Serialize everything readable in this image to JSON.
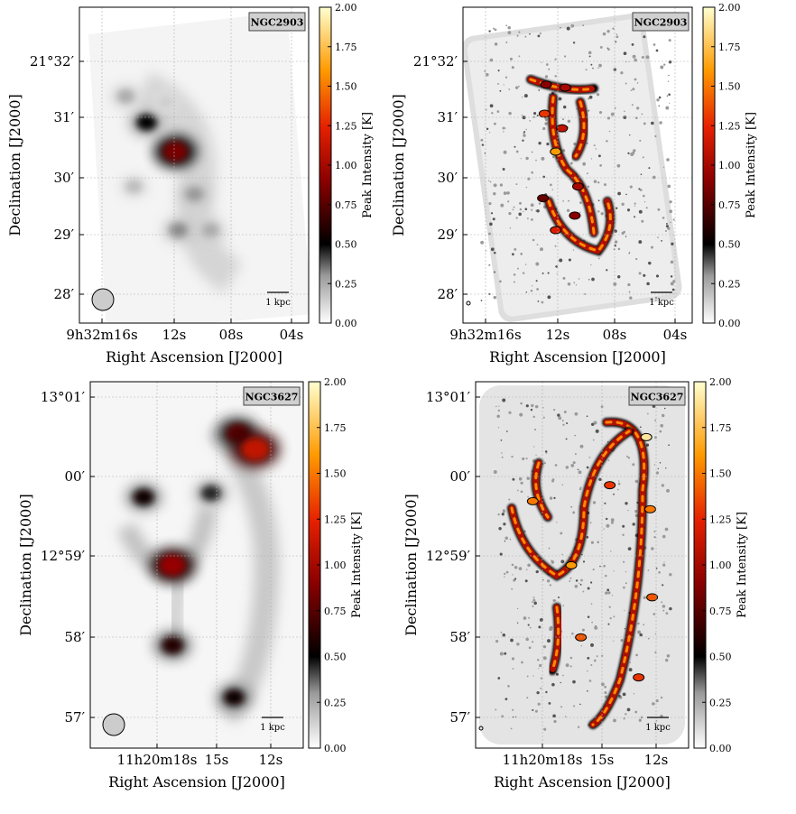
{
  "chart_data": [
    {
      "type": "heatmap",
      "title": "NGC2903",
      "xlabel": "Right Ascension [J2000]",
      "ylabel": "Declination [J2000]",
      "x_ticks": [
        "9h32m16s",
        "12s",
        "08s",
        "04s"
      ],
      "y_ticks": [
        "21°32′",
        "31′",
        "30′",
        "29′",
        "28′"
      ],
      "colorbar_label": "Peak Intensity [K]",
      "colorbar_ticks": [
        "2.00",
        "1.75",
        "1.50",
        "1.25",
        "1.00",
        "0.75",
        "0.50",
        "0.25",
        "0.00"
      ],
      "colorbar_range": [
        0,
        2
      ],
      "scalebar_label": "1 kpc",
      "beam": "large",
      "grid": true,
      "blobs": [
        {
          "ra": 13.2,
          "dec": 30.95,
          "peak": 0.5
        },
        {
          "ra": 11.4,
          "dec": 30.45,
          "peak": 0.85
        },
        {
          "ra": 14.5,
          "dec": 31.4,
          "peak": 0.25
        },
        {
          "ra": 10.2,
          "dec": 29.72,
          "peak": 0.3
        },
        {
          "ra": 11.2,
          "dec": 29.1,
          "peak": 0.32
        },
        {
          "ra": 9.2,
          "dec": 29.1,
          "peak": 0.25
        },
        {
          "ra": 14.0,
          "dec": 29.85,
          "peak": 0.2
        },
        {
          "ra": 12.0,
          "dec": 31.3,
          "peak": 0.15
        }
      ]
    },
    {
      "type": "heatmap",
      "title": "NGC2903",
      "xlabel": "Right Ascension [J2000]",
      "ylabel": "Declination [J2000]",
      "x_ticks": [
        "9h32m16s",
        "12s",
        "08s",
        "04s"
      ],
      "y_ticks": [
        "21°32′",
        "31′",
        "30′",
        "29′",
        "28′"
      ],
      "colorbar_label": "Peak Intensity [K]",
      "colorbar_ticks": [
        "2.00",
        "1.75",
        "1.50",
        "1.25",
        "1.00",
        "0.75",
        "0.50",
        "0.25",
        "0.00"
      ],
      "colorbar_range": [
        0,
        2
      ],
      "scalebar_label": "1 kpc",
      "beam": "small",
      "grid": true,
      "features": [
        {
          "ra": 12.2,
          "dec": 31.6,
          "peak": 0.9
        },
        {
          "ra": 11.0,
          "dec": 31.55,
          "peak": 1.0
        },
        {
          "ra": 12.3,
          "dec": 31.1,
          "peak": 1.3
        },
        {
          "ra": 11.2,
          "dec": 30.85,
          "peak": 1.1
        },
        {
          "ra": 11.6,
          "dec": 30.45,
          "peak": 1.6
        },
        {
          "ra": 10.2,
          "dec": 29.85,
          "peak": 1.0
        },
        {
          "ra": 10.4,
          "dec": 29.35,
          "peak": 0.9
        },
        {
          "ra": 11.6,
          "dec": 29.1,
          "peak": 1.2
        },
        {
          "ra": 12.4,
          "dec": 29.65,
          "peak": 0.8
        }
      ]
    },
    {
      "type": "heatmap",
      "title": "NGC3627",
      "xlabel": "Right Ascension [J2000]",
      "ylabel": "Declination [J2000]",
      "x_ticks": [
        "11h20m18s",
        "15s",
        "12s"
      ],
      "y_ticks": [
        "13°01′",
        "00′",
        "12°59′",
        "58′",
        "57′"
      ],
      "colorbar_label": "Peak Intensity [K]",
      "colorbar_ticks": [
        "2.00",
        "1.75",
        "1.50",
        "1.25",
        "1.00",
        "0.75",
        "0.50",
        "0.25",
        "0.00"
      ],
      "colorbar_range": [
        0,
        2
      ],
      "scalebar_label": "1 kpc",
      "beam": "large",
      "grid": true,
      "blobs": [
        {
          "ra": 13.8,
          "dec": 0.55,
          "peak": 0.75
        },
        {
          "ra": 12.9,
          "dec": 0.35,
          "peak": 1.1
        },
        {
          "ra": 18.7,
          "dec": -0.25,
          "peak": 0.55
        },
        {
          "ra": 15.2,
          "dec": -0.2,
          "peak": 0.45
        },
        {
          "ra": 17.2,
          "dec": -1.1,
          "peak": 0.95
        },
        {
          "ra": 17.2,
          "dec": -2.1,
          "peak": 0.6
        },
        {
          "ra": 14.0,
          "dec": -2.75,
          "peak": 0.55
        }
      ]
    },
    {
      "type": "heatmap",
      "title": "NGC3627",
      "xlabel": "Right Ascension [J2000]",
      "ylabel": "Declination [J2000]",
      "x_ticks": [
        "11h20m18s",
        "15s",
        "12s"
      ],
      "y_ticks": [
        "13°01′",
        "00′",
        "12°59′",
        "58′",
        "57′"
      ],
      "colorbar_label": "Peak Intensity [K]",
      "colorbar_ticks": [
        "2.00",
        "1.75",
        "1.50",
        "1.25",
        "1.00",
        "0.75",
        "0.50",
        "0.25",
        "0.00"
      ],
      "colorbar_range": [
        0,
        2
      ],
      "scalebar_label": "1 kpc",
      "beam": "small",
      "grid": true,
      "features": [
        {
          "ra": 12.6,
          "dec": 0.5,
          "peak": 1.9
        },
        {
          "ra": 12.4,
          "dec": -0.4,
          "peak": 1.5
        },
        {
          "ra": 12.3,
          "dec": -1.5,
          "peak": 1.4
        },
        {
          "ra": 13.0,
          "dec": -2.5,
          "peak": 1.3
        },
        {
          "ra": 18.5,
          "dec": -0.3,
          "peak": 1.5
        },
        {
          "ra": 16.5,
          "dec": -1.1,
          "peak": 1.6
        },
        {
          "ra": 14.5,
          "dec": -0.1,
          "peak": 1.3
        },
        {
          "ra": 16.0,
          "dec": -2.0,
          "peak": 1.4
        }
      ]
    }
  ]
}
